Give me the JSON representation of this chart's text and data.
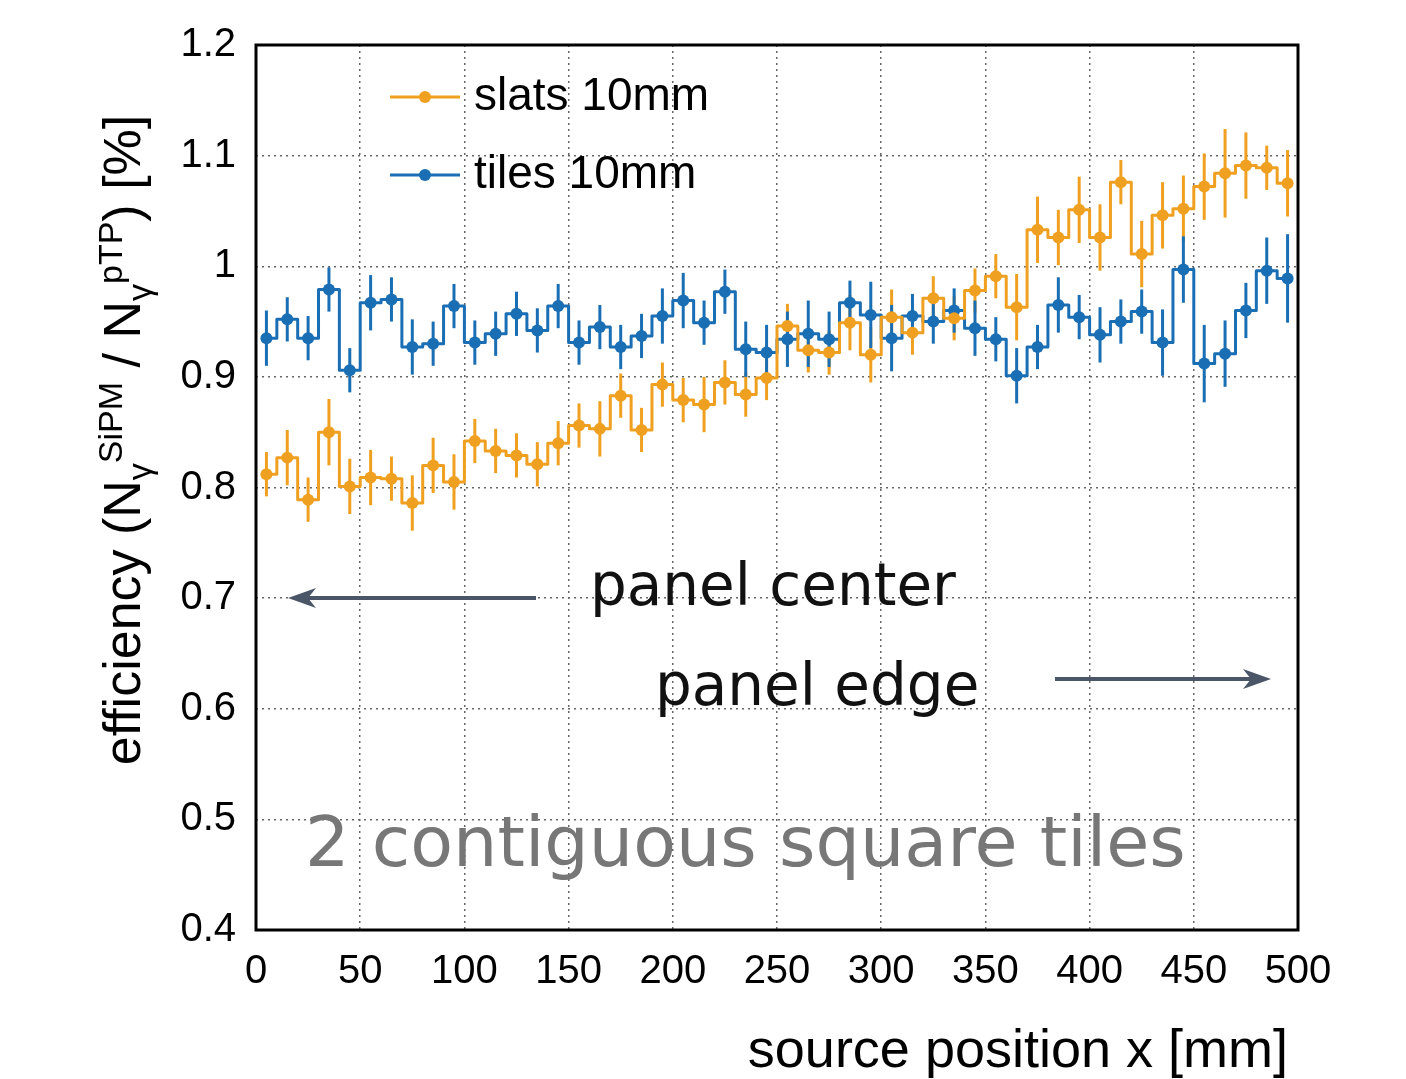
{
  "chart_data": {
    "type": "step",
    "xlabel": "source position x [mm]",
    "ylabel": "efficiency (N$_{γ}$$^{SiPM}$ / N$_{γ}$$^{pTP}$) [%]",
    "x": [
      5,
      15,
      25,
      35,
      45,
      55,
      65,
      75,
      85,
      95,
      105,
      115,
      125,
      135,
      145,
      155,
      165,
      175,
      185,
      195,
      205,
      215,
      225,
      235,
      245,
      255,
      265,
      275,
      285,
      295,
      305,
      315,
      325,
      335,
      345,
      355,
      365,
      375,
      385,
      395,
      405,
      415,
      425,
      435,
      445,
      455,
      465,
      475,
      485,
      495
    ],
    "series": [
      {
        "name": "slats 10mm",
        "color": "#f0a020",
        "values": [
          0.812,
          0.827,
          0.789,
          0.85,
          0.801,
          0.809,
          0.808,
          0.786,
          0.82,
          0.805,
          0.842,
          0.833,
          0.829,
          0.821,
          0.84,
          0.856,
          0.853,
          0.883,
          0.852,
          0.893,
          0.879,
          0.875,
          0.895,
          0.884,
          0.899,
          0.946,
          0.924,
          0.922,
          0.949,
          0.92,
          0.954,
          0.94,
          0.971,
          0.953,
          0.978,
          0.991,
          0.963,
          1.033,
          1.026,
          1.051,
          1.026,
          1.076,
          1.011,
          1.046,
          1.052,
          1.072,
          1.084,
          1.091,
          1.089,
          1.075
        ],
        "errors": [
          0.02,
          0.025,
          0.02,
          0.03,
          0.025,
          0.025,
          0.02,
          0.025,
          0.025,
          0.025,
          0.02,
          0.02,
          0.02,
          0.02,
          0.02,
          0.02,
          0.025,
          0.02,
          0.02,
          0.02,
          0.02,
          0.025,
          0.02,
          0.02,
          0.02,
          0.02,
          0.02,
          0.02,
          0.025,
          0.025,
          0.025,
          0.02,
          0.02,
          0.02,
          0.02,
          0.02,
          0.03,
          0.03,
          0.025,
          0.03,
          0.03,
          0.02,
          0.03,
          0.03,
          0.03,
          0.03,
          0.04,
          0.03,
          0.02,
          0.03
        ]
      },
      {
        "name": "tiles 10mm",
        "color": "#1a6eb4",
        "values": [
          0.935,
          0.952,
          0.935,
          0.979,
          0.906,
          0.967,
          0.97,
          0.927,
          0.93,
          0.964,
          0.931,
          0.939,
          0.957,
          0.942,
          0.964,
          0.931,
          0.945,
          0.927,
          0.937,
          0.955,
          0.969,
          0.949,
          0.977,
          0.925,
          0.922,
          0.934,
          0.939,
          0.934,
          0.967,
          0.956,
          0.935,
          0.955,
          0.95,
          0.96,
          0.944,
          0.934,
          0.901,
          0.927,
          0.965,
          0.954,
          0.938,
          0.95,
          0.959,
          0.931,
          0.997,
          0.912,
          0.921,
          0.96,
          0.996,
          0.989
        ],
        "errors": [
          0.025,
          0.02,
          0.02,
          0.02,
          0.02,
          0.025,
          0.02,
          0.025,
          0.02,
          0.02,
          0.02,
          0.02,
          0.02,
          0.02,
          0.02,
          0.02,
          0.02,
          0.02,
          0.02,
          0.025,
          0.025,
          0.02,
          0.02,
          0.025,
          0.025,
          0.025,
          0.03,
          0.025,
          0.02,
          0.03,
          0.03,
          0.02,
          0.02,
          0.02,
          0.025,
          0.02,
          0.025,
          0.02,
          0.025,
          0.02,
          0.025,
          0.02,
          0.02,
          0.03,
          0.03,
          0.035,
          0.03,
          0.025,
          0.03,
          0.04
        ]
      }
    ],
    "xlim": [
      0,
      500
    ],
    "xticks": [
      0,
      50,
      100,
      150,
      200,
      250,
      300,
      350,
      400,
      450,
      500
    ],
    "ylim": [
      0.4,
      1.2
    ],
    "yticks": [
      0.4,
      0.5,
      0.6,
      0.7,
      0.8,
      0.9,
      1,
      1.1,
      1.2
    ],
    "grid": true,
    "legend": "top left",
    "marker": "circle",
    "line_style": "solid",
    "annotations": [
      "panel center",
      "panel edge",
      "2 contiguous square tiles"
    ]
  }
}
